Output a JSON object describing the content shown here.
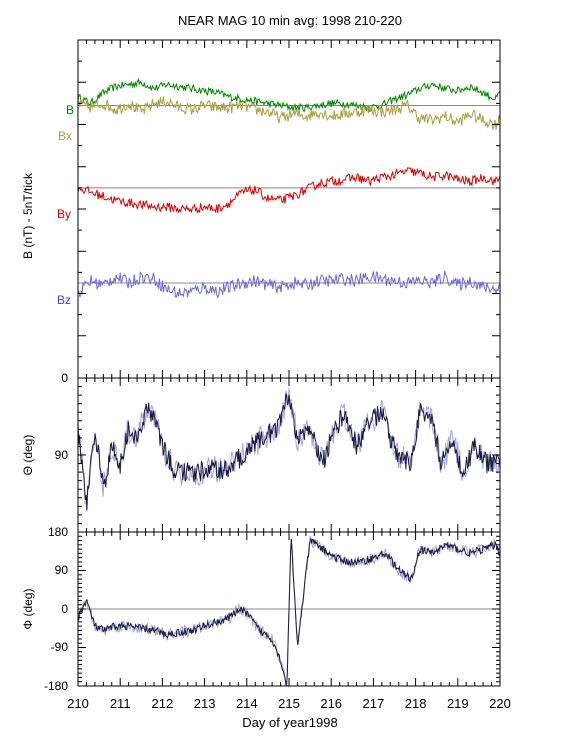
{
  "chart_data": {
    "type": "line",
    "title": "NEAR MAG 10 min avg: 1998 210-220",
    "xlabel": "Day of year1998",
    "x_ticks": [
      "210",
      "211",
      "212",
      "213",
      "214",
      "215",
      "216",
      "217",
      "218",
      "219",
      "220"
    ],
    "xlim": [
      210,
      220
    ],
    "colors": {
      "B": "#008800",
      "Bx": "#a8a040",
      "By": "#dd0000",
      "Bz": "#6a6ad8",
      "angle": "#1a1a3a",
      "angle_spread": "#8c8cd8",
      "ref": "#888888"
    },
    "panels": [
      {
        "id": "field",
        "ylabel": "B  (nT) - 5nT/tick",
        "tick_labels": [
          "0"
        ],
        "series": [
          {
            "name": "B",
            "offset_ticks": 13.4,
            "points": [
              [
                210.0,
                13.3
              ],
              [
                210.3,
                13.0
              ],
              [
                210.6,
                13.5
              ],
              [
                210.9,
                13.8
              ],
              [
                211.2,
                13.9
              ],
              [
                211.5,
                14.0
              ],
              [
                211.8,
                13.7
              ],
              [
                212.1,
                13.9
              ],
              [
                212.4,
                13.8
              ],
              [
                212.7,
                13.7
              ],
              [
                213.0,
                13.6
              ],
              [
                213.3,
                13.5
              ],
              [
                213.6,
                13.3
              ],
              [
                213.9,
                13.2
              ],
              [
                214.2,
                13.1
              ],
              [
                214.5,
                13.0
              ],
              [
                214.8,
                12.9
              ],
              [
                215.1,
                12.8
              ],
              [
                215.4,
                12.8
              ],
              [
                215.7,
                12.9
              ],
              [
                216.0,
                13.0
              ],
              [
                216.3,
                13.0
              ],
              [
                216.6,
                12.9
              ],
              [
                216.9,
                12.8
              ],
              [
                217.2,
                12.9
              ],
              [
                217.5,
                13.2
              ],
              [
                217.8,
                13.4
              ],
              [
                218.1,
                13.7
              ],
              [
                218.4,
                13.9
              ],
              [
                218.7,
                13.7
              ],
              [
                219.0,
                13.6
              ],
              [
                219.3,
                13.8
              ],
              [
                219.6,
                13.5
              ],
              [
                219.9,
                13.2
              ],
              [
                220.0,
                13.5
              ]
            ]
          },
          {
            "name": "Bx",
            "offset_ticks": 12.9,
            "points": [
              [
                210.0,
                13.0
              ],
              [
                210.3,
                12.8
              ],
              [
                210.6,
                13.0
              ],
              [
                210.9,
                12.7
              ],
              [
                211.2,
                13.0
              ],
              [
                211.5,
                12.6
              ],
              [
                211.8,
                13.0
              ],
              [
                212.1,
                13.1
              ],
              [
                212.4,
                12.8
              ],
              [
                212.7,
                12.7
              ],
              [
                213.0,
                12.9
              ],
              [
                213.3,
                12.8
              ],
              [
                213.6,
                12.8
              ],
              [
                213.9,
                12.9
              ],
              [
                214.2,
                12.7
              ],
              [
                214.5,
                12.6
              ],
              [
                214.8,
                12.3
              ],
              [
                215.1,
                12.5
              ],
              [
                215.4,
                12.4
              ],
              [
                215.7,
                12.6
              ],
              [
                216.0,
                12.4
              ],
              [
                216.3,
                12.5
              ],
              [
                216.6,
                12.6
              ],
              [
                216.9,
                12.7
              ],
              [
                217.2,
                12.6
              ],
              [
                217.5,
                12.7
              ],
              [
                217.8,
                12.9
              ],
              [
                218.1,
                12.3
              ],
              [
                218.4,
                12.2
              ],
              [
                218.7,
                12.4
              ],
              [
                219.0,
                12.1
              ],
              [
                219.3,
                12.5
              ],
              [
                219.6,
                12.2
              ],
              [
                219.9,
                12.0
              ],
              [
                220.0,
                12.3
              ]
            ]
          },
          {
            "name": "By",
            "offset_ticks": 9.0,
            "points": [
              [
                210.0,
                9.0
              ],
              [
                210.3,
                8.8
              ],
              [
                210.6,
                8.6
              ],
              [
                210.9,
                8.4
              ],
              [
                211.2,
                8.3
              ],
              [
                211.5,
                8.2
              ],
              [
                211.8,
                8.1
              ],
              [
                212.1,
                8.1
              ],
              [
                212.4,
                8.0
              ],
              [
                212.7,
                8.0
              ],
              [
                213.0,
                8.1
              ],
              [
                213.3,
                8.0
              ],
              [
                213.6,
                8.3
              ],
              [
                213.9,
                8.8
              ],
              [
                214.2,
                8.9
              ],
              [
                214.5,
                8.5
              ],
              [
                214.8,
                8.4
              ],
              [
                215.1,
                8.6
              ],
              [
                215.4,
                8.9
              ],
              [
                215.7,
                9.2
              ],
              [
                216.0,
                9.3
              ],
              [
                216.3,
                9.4
              ],
              [
                216.6,
                9.5
              ],
              [
                216.9,
                9.3
              ],
              [
                217.2,
                9.5
              ],
              [
                217.5,
                9.6
              ],
              [
                217.8,
                9.8
              ],
              [
                218.1,
                9.7
              ],
              [
                218.4,
                9.5
              ],
              [
                218.7,
                9.6
              ],
              [
                219.0,
                9.4
              ],
              [
                219.3,
                9.3
              ],
              [
                219.6,
                9.5
              ],
              [
                219.9,
                9.3
              ],
              [
                220.0,
                9.5
              ]
            ]
          },
          {
            "name": "Bz",
            "offset_ticks": 4.5,
            "points": [
              [
                210.0,
                4.0
              ],
              [
                210.3,
                4.6
              ],
              [
                210.6,
                4.4
              ],
              [
                210.9,
                4.8
              ],
              [
                211.2,
                4.5
              ],
              [
                211.5,
                4.8
              ],
              [
                211.8,
                4.7
              ],
              [
                212.1,
                4.2
              ],
              [
                212.4,
                4.0
              ],
              [
                212.7,
                4.1
              ],
              [
                213.0,
                4.3
              ],
              [
                213.3,
                4.1
              ],
              [
                213.6,
                4.3
              ],
              [
                213.9,
                4.5
              ],
              [
                214.2,
                4.6
              ],
              [
                214.5,
                4.4
              ],
              [
                214.8,
                4.3
              ],
              [
                215.1,
                4.5
              ],
              [
                215.4,
                4.4
              ],
              [
                215.7,
                4.6
              ],
              [
                216.0,
                4.6
              ],
              [
                216.3,
                4.7
              ],
              [
                216.6,
                4.6
              ],
              [
                216.9,
                4.8
              ],
              [
                217.2,
                4.7
              ],
              [
                217.5,
                4.6
              ],
              [
                217.8,
                4.5
              ],
              [
                218.1,
                4.6
              ],
              [
                218.4,
                4.5
              ],
              [
                218.7,
                4.8
              ],
              [
                219.0,
                4.4
              ],
              [
                219.3,
                4.6
              ],
              [
                219.6,
                4.3
              ],
              [
                219.9,
                4.2
              ],
              [
                220.0,
                4.4
              ]
            ]
          }
        ]
      },
      {
        "id": "theta",
        "ylabel": "Θ (deg)",
        "ylim": [
          180,
          0
        ],
        "tick_labels": [
          "90"
        ],
        "ref_value": 90,
        "series": [
          {
            "name": "Θ",
            "points": [
              [
                210.0,
                60
              ],
              [
                210.2,
                150
              ],
              [
                210.4,
                60
              ],
              [
                210.6,
                130
              ],
              [
                210.8,
                80
              ],
              [
                211.0,
                100
              ],
              [
                211.2,
                60
              ],
              [
                211.4,
                70
              ],
              [
                211.6,
                40
              ],
              [
                211.8,
                40
              ],
              [
                212.0,
                80
              ],
              [
                212.3,
                110
              ],
              [
                212.6,
                110
              ],
              [
                212.9,
                110
              ],
              [
                213.2,
                105
              ],
              [
                213.5,
                108
              ],
              [
                213.8,
                95
              ],
              [
                214.1,
                80
              ],
              [
                214.4,
                70
              ],
              [
                214.7,
                60
              ],
              [
                215.0,
                20
              ],
              [
                215.2,
                70
              ],
              [
                215.5,
                60
              ],
              [
                215.8,
                100
              ],
              [
                216.0,
                70
              ],
              [
                216.3,
                40
              ],
              [
                216.6,
                80
              ],
              [
                216.9,
                50
              ],
              [
                217.2,
                40
              ],
              [
                217.4,
                70
              ],
              [
                217.6,
                90
              ],
              [
                217.9,
                100
              ],
              [
                218.1,
                40
              ],
              [
                218.4,
                50
              ],
              [
                218.6,
                100
              ],
              [
                218.9,
                70
              ],
              [
                219.1,
                110
              ],
              [
                219.4,
                80
              ],
              [
                219.7,
                100
              ],
              [
                220.0,
                100
              ]
            ]
          }
        ]
      },
      {
        "id": "phi",
        "ylabel": "Φ (deg)",
        "ylim": [
          -180,
          180
        ],
        "tick_labels": [
          "180",
          "90",
          "0",
          "-90",
          "-180"
        ],
        "ref_value": 0,
        "series": [
          {
            "name": "Φ",
            "points": [
              [
                210.0,
                -20
              ],
              [
                210.2,
                20
              ],
              [
                210.4,
                -40
              ],
              [
                210.6,
                -50
              ],
              [
                210.9,
                -40
              ],
              [
                211.2,
                -40
              ],
              [
                211.5,
                -45
              ],
              [
                211.8,
                -50
              ],
              [
                212.1,
                -60
              ],
              [
                212.4,
                -55
              ],
              [
                212.7,
                -50
              ],
              [
                213.0,
                -40
              ],
              [
                213.3,
                -30
              ],
              [
                213.6,
                -20
              ],
              [
                213.8,
                0
              ],
              [
                214.0,
                -10
              ],
              [
                214.3,
                -50
              ],
              [
                214.6,
                -70
              ],
              [
                214.8,
                -120
              ],
              [
                214.95,
                -180
              ],
              [
                215.05,
                170
              ],
              [
                215.2,
                -90
              ],
              [
                215.35,
                40
              ],
              [
                215.5,
                160
              ],
              [
                215.8,
                140
              ],
              [
                216.1,
                120
              ],
              [
                216.4,
                110
              ],
              [
                216.7,
                110
              ],
              [
                217.0,
                120
              ],
              [
                217.3,
                130
              ],
              [
                217.6,
                90
              ],
              [
                217.9,
                70
              ],
              [
                218.1,
                140
              ],
              [
                218.4,
                130
              ],
              [
                218.7,
                150
              ],
              [
                219.0,
                140
              ],
              [
                219.3,
                130
              ],
              [
                219.6,
                140
              ],
              [
                219.9,
                150
              ],
              [
                220.0,
                130
              ]
            ]
          }
        ]
      }
    ]
  }
}
